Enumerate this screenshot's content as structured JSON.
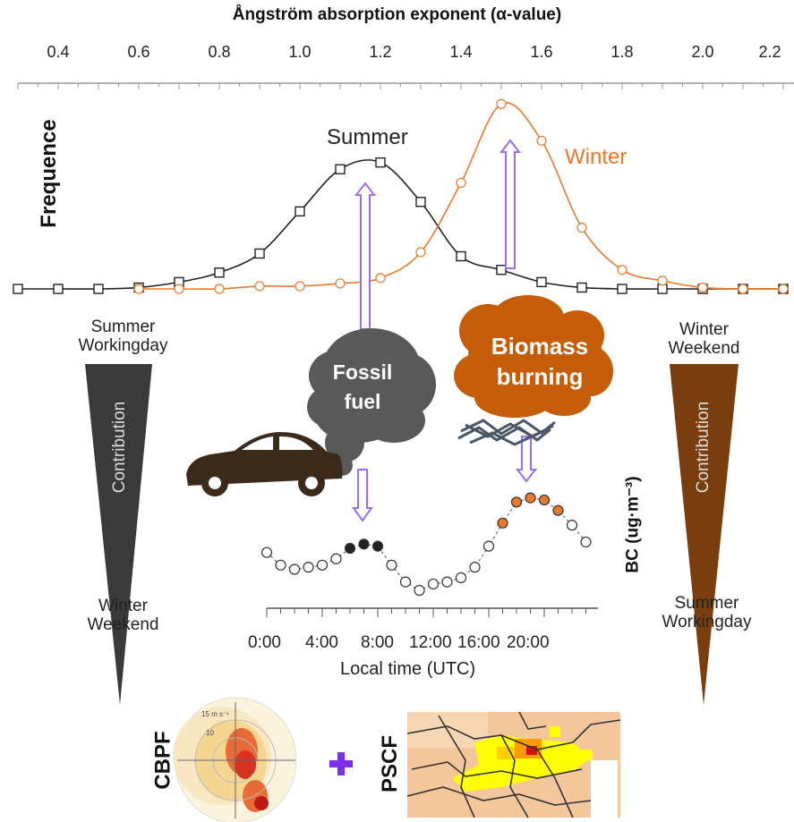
{
  "top_axis": {
    "title": "Ångström absorption  exponent (α-value)",
    "ticks": [
      "0.4",
      "0.6",
      "0.8",
      "1.0",
      "1.2",
      "1.4",
      "1.6",
      "1.8",
      "2.0",
      "2.2"
    ]
  },
  "y_axis_label": "Frequence",
  "series_labels": {
    "summer": "Summer",
    "winter": "Winter"
  },
  "colors": {
    "summer": "#222222",
    "winter": "#e8782a",
    "arrow": "#9b6cf0",
    "fossil_cloud": "#595959",
    "biomass_cloud": "#c45c08",
    "left_triangle": "#3a3a3a",
    "right_triangle": "#7a3e0e",
    "plus": "#7b2ef0"
  },
  "chart_data": {
    "type": "line",
    "x": [
      0.3,
      0.4,
      0.5,
      0.6,
      0.7,
      0.8,
      0.9,
      1.0,
      1.1,
      1.2,
      1.3,
      1.4,
      1.5,
      1.6,
      1.7,
      1.8,
      1.9,
      2.0,
      2.1,
      2.2
    ],
    "series": [
      {
        "name": "Summer",
        "marker": "square",
        "values": [
          0,
          0,
          0,
          0.01,
          0.05,
          0.12,
          0.26,
          0.57,
          0.88,
          0.93,
          0.64,
          0.24,
          0.14,
          0.05,
          0.01,
          0,
          0,
          0,
          0,
          0
        ]
      },
      {
        "name": "Winter",
        "marker": "circle",
        "values": [
          null,
          null,
          null,
          0,
          0,
          0,
          0.02,
          0.02,
          0.04,
          0.08,
          0.27,
          0.78,
          1.36,
          1.09,
          0.45,
          0.14,
          0.06,
          0.01,
          0,
          0
        ]
      }
    ]
  },
  "left_panel": {
    "top_label": [
      "Summer",
      "Workingday"
    ],
    "bottom_label": [
      "Winter",
      "Weekend"
    ],
    "triangle_text": "Contribution"
  },
  "right_panel": {
    "top_label": [
      "Winter",
      "Weekend"
    ],
    "bottom_label": [
      "Summer",
      "Workingday"
    ],
    "triangle_text": "Contribution"
  },
  "fossil_cloud": [
    "Fossil",
    "fuel"
  ],
  "biomass_cloud": [
    "Biomass",
    "burning"
  ],
  "icons": {
    "car": "car-icon",
    "smoke": "smoke-icon",
    "arrow": "hollow-arrow-icon"
  },
  "diurnal": {
    "x_ticks": [
      "0:00",
      "4:00",
      "8:00",
      "12:00",
      "16:00",
      "20:00"
    ],
    "x_label": "Local time (UTC)",
    "y_label": "BC (ug·m⁻³)",
    "chart_data": {
      "type": "line",
      "hours": [
        0,
        1,
        2,
        3,
        4,
        5,
        6,
        7,
        8,
        9,
        10,
        11,
        12,
        13,
        14,
        15,
        16,
        17,
        18,
        19,
        20,
        21,
        22,
        23
      ],
      "values": [
        1.9,
        1.6,
        1.5,
        1.55,
        1.6,
        1.75,
        2.0,
        2.1,
        2.05,
        1.6,
        1.2,
        1.0,
        1.15,
        1.2,
        1.3,
        1.55,
        2.05,
        2.6,
        3.1,
        3.2,
        3.15,
        2.9,
        2.55,
        2.15
      ],
      "highlight_black": [
        6,
        7,
        8
      ],
      "highlight_orange": [
        17,
        18,
        19,
        20,
        21
      ]
    }
  },
  "bottom": {
    "cbpf_label": "CBPF",
    "pscf_label": "PSCF",
    "plus": "+",
    "polar_tag": "15 m s⁻¹",
    "polar_ring": "10"
  }
}
